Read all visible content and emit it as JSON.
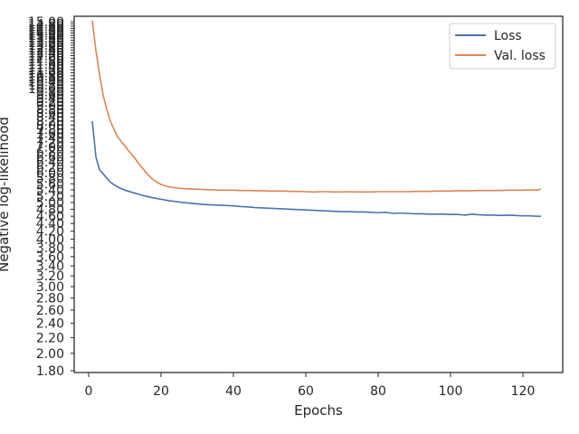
{
  "chart_data": {
    "type": "line",
    "title": "",
    "xlabel": "Epochs",
    "ylabel": "Negative log-likelihood",
    "yscale": "log",
    "xlim": [
      -4,
      131
    ],
    "ylim": [
      1.78,
      15.5
    ],
    "x_ticks": [
      0,
      20,
      40,
      60,
      80,
      100,
      120
    ],
    "y_ticks_labeled": [
      1.8,
      2.0,
      2.2,
      2.4,
      2.6,
      2.8,
      3.0,
      3.2,
      3.4,
      3.6,
      3.8,
      4.0,
      4.2,
      4.4,
      4.6,
      4.8,
      5.0,
      5.2,
      5.4,
      5.6,
      5.8,
      6.0,
      6.2,
      6.4,
      6.6,
      6.8,
      7.0,
      7.2,
      7.4,
      7.6,
      7.8,
      8.0,
      8.2,
      8.4,
      8.6,
      8.8,
      9.0,
      9.2,
      9.4,
      9.6,
      9.8,
      10.0,
      10.2,
      10.4,
      10.6,
      10.8,
      11.0,
      11.2,
      11.4,
      11.6,
      11.8,
      12.0,
      12.2,
      12.4,
      12.6,
      12.8,
      13.0,
      13.2,
      13.4,
      13.6,
      13.8,
      14.0,
      14.2,
      14.4,
      14.6,
      14.8,
      15.0
    ],
    "grid": false,
    "legend_position": "top-right",
    "colors": {
      "loss": "#4c72b0",
      "val_loss": "#dd8452",
      "axes": "#262626"
    },
    "series": [
      {
        "name": "Loss",
        "color": "#4c72b0",
        "x": [
          1,
          2,
          3,
          4,
          5,
          6,
          7,
          8,
          9,
          10,
          12,
          14,
          16,
          18,
          20,
          22,
          24,
          26,
          28,
          30,
          32,
          34,
          36,
          38,
          40,
          42,
          44,
          46,
          48,
          50,
          52,
          54,
          56,
          58,
          60,
          62,
          64,
          66,
          68,
          70,
          72,
          74,
          76,
          78,
          80,
          82,
          84,
          86,
          88,
          90,
          92,
          94,
          96,
          98,
          100,
          102,
          104,
          106,
          108,
          110,
          112,
          114,
          116,
          118,
          120,
          122,
          124,
          125
        ],
        "y": [
          8.2,
          6.6,
          6.1,
          5.95,
          5.8,
          5.66,
          5.57,
          5.5,
          5.44,
          5.39,
          5.32,
          5.25,
          5.19,
          5.14,
          5.1,
          5.06,
          5.03,
          5.0,
          4.98,
          4.96,
          4.94,
          4.93,
          4.92,
          4.91,
          4.9,
          4.88,
          4.87,
          4.85,
          4.84,
          4.83,
          4.82,
          4.81,
          4.8,
          4.79,
          4.78,
          4.77,
          4.76,
          4.75,
          4.74,
          4.73,
          4.73,
          4.72,
          4.72,
          4.71,
          4.7,
          4.71,
          4.68,
          4.69,
          4.68,
          4.67,
          4.67,
          4.66,
          4.66,
          4.66,
          4.65,
          4.65,
          4.63,
          4.66,
          4.64,
          4.63,
          4.63,
          4.62,
          4.63,
          4.62,
          4.61,
          4.61,
          4.6,
          4.6
        ]
      },
      {
        "name": "Val. loss",
        "color": "#dd8452",
        "x": [
          1,
          2,
          3,
          4,
          5,
          6,
          7,
          8,
          9,
          10,
          11,
          12,
          13,
          14,
          15,
          16,
          17,
          18,
          19,
          20,
          22,
          24,
          26,
          28,
          30,
          32,
          34,
          36,
          38,
          40,
          42,
          44,
          46,
          48,
          50,
          52,
          54,
          56,
          58,
          60,
          62,
          64,
          66,
          68,
          70,
          72,
          74,
          76,
          78,
          80,
          82,
          84,
          86,
          88,
          90,
          92,
          94,
          96,
          98,
          100,
          102,
          104,
          106,
          108,
          110,
          112,
          114,
          116,
          118,
          120,
          122,
          124,
          125
        ],
        "y": [
          15.1,
          12.6,
          10.9,
          9.6,
          8.8,
          8.2,
          7.8,
          7.45,
          7.25,
          7.05,
          6.85,
          6.68,
          6.5,
          6.3,
          6.14,
          5.97,
          5.84,
          5.72,
          5.65,
          5.58,
          5.5,
          5.47,
          5.44,
          5.43,
          5.42,
          5.41,
          5.4,
          5.39,
          5.39,
          5.39,
          5.38,
          5.38,
          5.37,
          5.37,
          5.36,
          5.36,
          5.36,
          5.35,
          5.35,
          5.34,
          5.33,
          5.34,
          5.34,
          5.33,
          5.33,
          5.34,
          5.33,
          5.33,
          5.33,
          5.34,
          5.34,
          5.34,
          5.34,
          5.34,
          5.35,
          5.35,
          5.35,
          5.36,
          5.36,
          5.36,
          5.37,
          5.37,
          5.37,
          5.38,
          5.38,
          5.38,
          5.38,
          5.39,
          5.39,
          5.39,
          5.4,
          5.39,
          5.43
        ]
      }
    ]
  }
}
